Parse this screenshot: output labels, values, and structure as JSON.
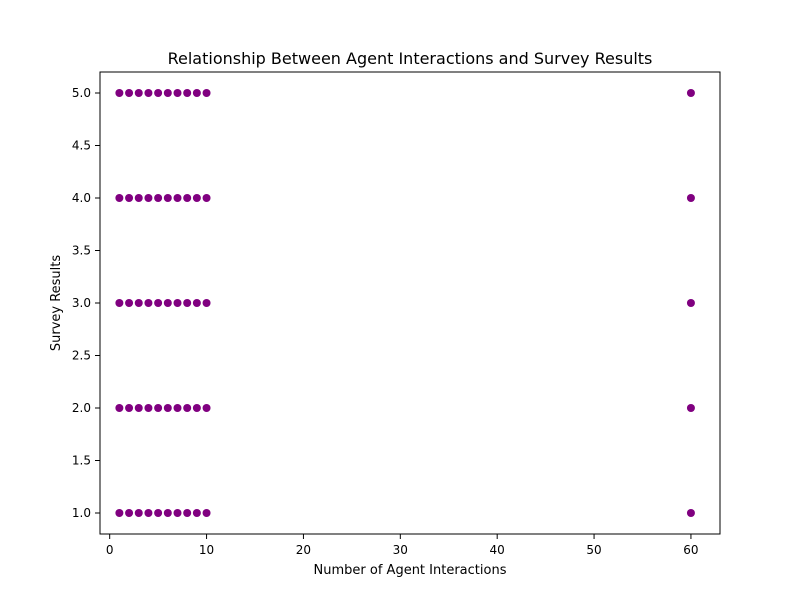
{
  "chart_data": {
    "type": "scatter",
    "title": "Relationship Between Agent Interactions and Survey Results",
    "xlabel": "Number of Agent Interactions",
    "ylabel": "Survey Results",
    "xlim": [
      -1,
      63
    ],
    "ylim": [
      0.8,
      5.2
    ],
    "xticks": [
      0,
      10,
      20,
      30,
      40,
      50,
      60
    ],
    "yticks": [
      1.0,
      1.5,
      2.0,
      2.5,
      3.0,
      3.5,
      4.0,
      4.5,
      5.0
    ],
    "xtick_labels": [
      "0",
      "10",
      "20",
      "30",
      "40",
      "50",
      "60"
    ],
    "ytick_labels": [
      "1.0",
      "1.5",
      "2.0",
      "2.5",
      "3.0",
      "3.5",
      "4.0",
      "4.5",
      "5.0"
    ],
    "grid": false,
    "marker_color": "#800080",
    "series": [
      {
        "x": [
          1,
          2,
          3,
          4,
          5,
          6,
          7,
          8,
          9,
          10,
          1,
          2,
          3,
          4,
          5,
          6,
          7,
          8,
          9,
          10,
          1,
          2,
          3,
          4,
          5,
          6,
          7,
          8,
          9,
          10,
          1,
          2,
          3,
          4,
          5,
          6,
          7,
          8,
          9,
          10,
          1,
          2,
          3,
          4,
          5,
          6,
          7,
          8,
          9,
          10,
          60,
          60,
          60,
          60,
          60
        ],
        "y": [
          5,
          5,
          5,
          5,
          5,
          5,
          5,
          5,
          5,
          5,
          4,
          4,
          4,
          4,
          4,
          4,
          4,
          4,
          4,
          4,
          3,
          3,
          3,
          3,
          3,
          3,
          3,
          3,
          3,
          3,
          2,
          2,
          2,
          2,
          2,
          2,
          2,
          2,
          2,
          2,
          1,
          1,
          1,
          1,
          1,
          1,
          1,
          1,
          1,
          1,
          5,
          4,
          3,
          2,
          1
        ]
      }
    ]
  }
}
